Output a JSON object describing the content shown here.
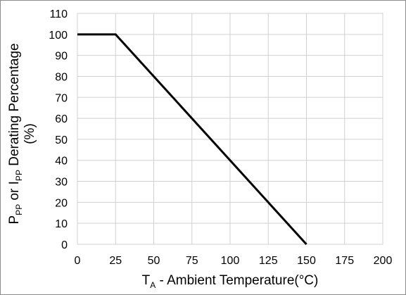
{
  "chart_data": {
    "type": "line",
    "series": [
      {
        "x": [
          0,
          25,
          150
        ],
        "y": [
          100,
          100,
          0
        ]
      }
    ],
    "xlim": [
      0,
      200
    ],
    "ylim": [
      0,
      110
    ],
    "xticks": [
      0,
      25,
      50,
      75,
      100,
      125,
      150,
      175,
      200
    ],
    "yticks": [
      0,
      10,
      20,
      30,
      40,
      50,
      60,
      70,
      80,
      90,
      100,
      110
    ],
    "xlabel": {
      "symbol": "T",
      "symbol_sub": "A",
      "text": " - Ambient Temperature(°C)"
    },
    "ylabel": {
      "line1_p": "P",
      "line1_p_sub": "PP",
      "line1_mid": " or I",
      "line1_i_sub": "PP",
      "line1_end": " Derating Percentage",
      "line2": "(%)"
    },
    "grid": true,
    "line_color": "#000000",
    "grid_color": "#d0d0d0"
  }
}
